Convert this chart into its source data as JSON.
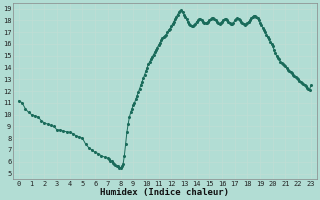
{
  "xlabel": "Humidex (Indice chaleur)",
  "xlim": [
    -0.5,
    23.5
  ],
  "ylim": [
    4.5,
    19.5
  ],
  "xticks": [
    0,
    1,
    2,
    3,
    4,
    5,
    6,
    7,
    8,
    9,
    10,
    11,
    12,
    13,
    14,
    15,
    16,
    17,
    18,
    19,
    20,
    21,
    22,
    23
  ],
  "yticks": [
    5,
    6,
    7,
    8,
    9,
    10,
    11,
    12,
    13,
    14,
    15,
    16,
    17,
    18,
    19
  ],
  "line_color": "#1a6b5a",
  "bg_color": "#b2ddd4",
  "grid_color": "#c0ddd5",
  "x": [
    0,
    0.25,
    0.5,
    0.75,
    1.0,
    1.25,
    1.5,
    1.75,
    2.0,
    2.25,
    2.5,
    2.75,
    3.0,
    3.25,
    3.5,
    3.75,
    4.0,
    4.25,
    4.5,
    4.75,
    5.0,
    5.25,
    5.5,
    5.75,
    6.0,
    6.25,
    6.5,
    6.75,
    7.0,
    7.1,
    7.2,
    7.3,
    7.4,
    7.5,
    7.6,
    7.7,
    7.8,
    7.9,
    8.0,
    8.1,
    8.2,
    8.3,
    8.4,
    8.5,
    8.6,
    8.7,
    8.8,
    8.9,
    9.0,
    9.1,
    9.2,
    9.3,
    9.4,
    9.5,
    9.6,
    9.7,
    9.8,
    9.9,
    10.0,
    10.1,
    10.2,
    10.3,
    10.4,
    10.5,
    10.6,
    10.7,
    10.8,
    10.9,
    11.0,
    11.1,
    11.2,
    11.3,
    11.4,
    11.5,
    11.6,
    11.7,
    11.8,
    11.9,
    12.0,
    12.1,
    12.2,
    12.3,
    12.4,
    12.5,
    12.6,
    12.7,
    12.8,
    12.9,
    13.0,
    13.1,
    13.2,
    13.3,
    13.4,
    13.5,
    13.6,
    13.7,
    13.8,
    13.9,
    14.0,
    14.1,
    14.2,
    14.3,
    14.4,
    14.5,
    14.6,
    14.7,
    14.8,
    14.9,
    15.0,
    15.1,
    15.2,
    15.3,
    15.4,
    15.5,
    15.6,
    15.7,
    15.8,
    15.9,
    16.0,
    16.1,
    16.2,
    16.3,
    16.4,
    16.5,
    16.6,
    16.7,
    16.8,
    16.9,
    17.0,
    17.1,
    17.2,
    17.3,
    17.4,
    17.5,
    17.6,
    17.7,
    17.8,
    17.9,
    18.0,
    18.1,
    18.2,
    18.3,
    18.4,
    18.5,
    18.6,
    18.7,
    18.8,
    18.9,
    19.0,
    19.1,
    19.2,
    19.3,
    19.4,
    19.5,
    19.6,
    19.7,
    19.8,
    19.9,
    20.0,
    20.1,
    20.2,
    20.3,
    20.4,
    20.5,
    20.6,
    20.7,
    20.8,
    20.9,
    21.0,
    21.1,
    21.2,
    21.3,
    21.4,
    21.5,
    21.6,
    21.7,
    21.8,
    21.9,
    22.0,
    22.1,
    22.2,
    22.3,
    22.4,
    22.5,
    22.6,
    22.7,
    22.8,
    22.9,
    23.0
  ],
  "y": [
    11.2,
    11.0,
    10.5,
    10.2,
    10.0,
    9.9,
    9.8,
    9.5,
    9.3,
    9.2,
    9.1,
    9.0,
    8.7,
    8.7,
    8.6,
    8.55,
    8.5,
    8.4,
    8.2,
    8.1,
    8.0,
    7.5,
    7.2,
    7.0,
    6.8,
    6.7,
    6.5,
    6.4,
    6.3,
    6.2,
    6.1,
    6.05,
    5.9,
    5.8,
    5.7,
    5.65,
    5.6,
    5.5,
    5.5,
    5.6,
    5.8,
    6.5,
    7.5,
    8.5,
    9.2,
    9.8,
    10.2,
    10.5,
    10.8,
    11.0,
    11.3,
    11.6,
    11.9,
    12.2,
    12.5,
    12.8,
    13.1,
    13.4,
    13.7,
    14.0,
    14.3,
    14.5,
    14.7,
    14.9,
    15.1,
    15.3,
    15.5,
    15.7,
    15.9,
    16.1,
    16.3,
    16.5,
    16.6,
    16.7,
    16.8,
    17.0,
    17.2,
    17.3,
    17.5,
    17.7,
    17.9,
    18.1,
    18.3,
    18.5,
    18.7,
    18.8,
    18.85,
    18.7,
    18.5,
    18.3,
    18.1,
    17.9,
    17.7,
    17.6,
    17.5,
    17.5,
    17.6,
    17.7,
    17.9,
    18.0,
    18.1,
    18.1,
    18.0,
    17.9,
    17.8,
    17.8,
    17.8,
    17.9,
    18.0,
    18.1,
    18.2,
    18.2,
    18.1,
    18.0,
    17.9,
    17.8,
    17.7,
    17.8,
    17.9,
    18.0,
    18.1,
    18.1,
    18.0,
    17.9,
    17.8,
    17.7,
    17.7,
    17.8,
    18.0,
    18.1,
    18.2,
    18.1,
    18.0,
    17.9,
    17.8,
    17.7,
    17.6,
    17.7,
    17.8,
    17.9,
    18.0,
    18.2,
    18.3,
    18.4,
    18.4,
    18.3,
    18.2,
    18.0,
    17.8,
    17.6,
    17.4,
    17.2,
    17.0,
    16.8,
    16.6,
    16.4,
    16.2,
    16.0,
    15.8,
    15.5,
    15.2,
    15.0,
    14.8,
    14.7,
    14.5,
    14.4,
    14.3,
    14.2,
    14.1,
    14.0,
    13.8,
    13.7,
    13.6,
    13.5,
    13.4,
    13.3,
    13.2,
    13.1,
    13.0,
    12.9,
    12.8,
    12.7,
    12.6,
    12.5,
    12.4,
    12.3,
    12.2,
    12.1,
    12.5
  ]
}
